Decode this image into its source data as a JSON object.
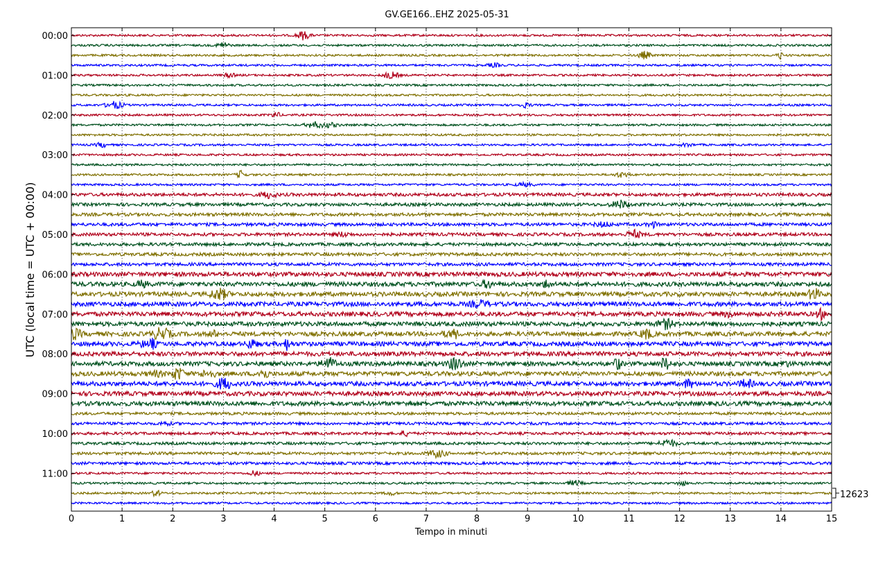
{
  "chart_data": {
    "type": "helicorder",
    "title": "GV.GE166..EHZ 2025-05-31",
    "xlabel": "Tempo in minuti",
    "ylabel": "UTC (local time = UTC + 00:00)",
    "xlim": [
      0,
      15
    ],
    "x_ticks": [
      "0",
      "1",
      "2",
      "3",
      "4",
      "5",
      "6",
      "7",
      "8",
      "9",
      "10",
      "11",
      "12",
      "13",
      "14",
      "15"
    ],
    "grid": "vertical dotted lines at each minute",
    "trace_minutes": 15,
    "trace_colors": [
      "#b0001a",
      "#00501e",
      "#7f6f00",
      "#0000ff"
    ],
    "hour_labels": [
      "00:00",
      "01:00",
      "02:00",
      "03:00",
      "04:00",
      "05:00",
      "06:00",
      "07:00",
      "08:00",
      "09:00",
      "10:00",
      "11:00"
    ],
    "traces_per_hour": 4,
    "scale_label": "12623",
    "activity_notes": "Quiet traces overnight; increasing background noise and many bursts from about 06:00 to 09:00 UTC; quieter again after 10:00."
  }
}
